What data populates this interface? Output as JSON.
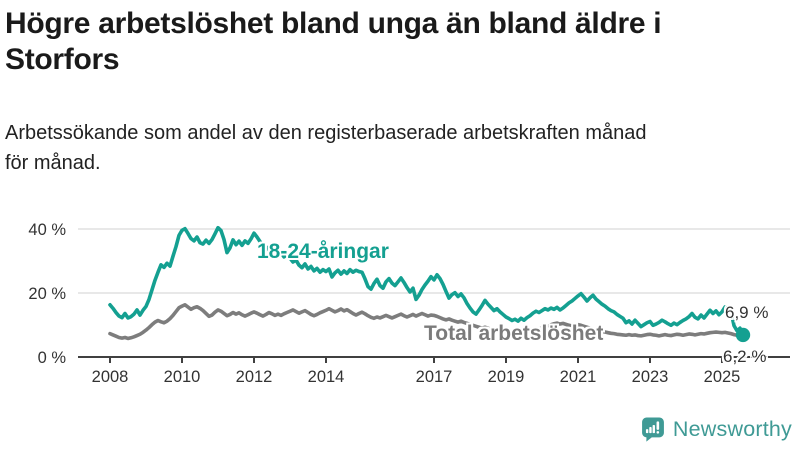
{
  "header": {
    "title": "Högre arbetslöshet bland unga än bland äldre i Storfors",
    "title_lines": [
      "Högre arbetslöshet bland unga än bland äldre i",
      "Storfors"
    ],
    "subtitle": "Arbetssökande som andel av den registerbaserade arbetskraften månad för månad.",
    "subtitle_lines": [
      "Arbetssökande som andel av den registerbaserade arbetskraften månad",
      "för månad."
    ]
  },
  "chart_data": {
    "type": "line",
    "title": "Högre arbetslöshet bland unga än bland äldre i Storfors",
    "subtitle": "Arbetssökande som andel av den registerbaserade arbetskraften månad för månad.",
    "frequency": "monthly",
    "unit": "%",
    "x_start_year": 2008,
    "x_end_approx": 2025.6,
    "x_tick_years": [
      2008,
      2010,
      2012,
      2014,
      2017,
      2019,
      2021,
      2023,
      2025
    ],
    "y_ticks": [
      {
        "value": 0,
        "label": "0 %"
      },
      {
        "value": 20,
        "label": "20 %"
      },
      {
        "value": 40,
        "label": "40 %"
      }
    ],
    "ylim": [
      0,
      44
    ],
    "grid": "horizontal-only",
    "legend": "inline-labels",
    "series": [
      {
        "name": "Total arbetslöshet",
        "color": "#7d7d7d",
        "end_value_label": "6,2 %",
        "end_dot": false,
        "values": [
          7.3,
          6.9,
          6.5,
          6.1,
          5.9,
          6.1,
          5.8,
          6.0,
          6.3,
          6.7,
          7.1,
          7.7,
          8.4,
          9.2,
          10.1,
          10.9,
          11.4,
          11.0,
          10.7,
          11.2,
          12.0,
          13.0,
          14.2,
          15.4,
          15.9,
          16.3,
          15.6,
          14.9,
          15.4,
          15.7,
          15.2,
          14.5,
          13.6,
          12.7,
          13.1,
          14.0,
          14.7,
          14.3,
          13.6,
          12.9,
          13.3,
          13.9,
          13.4,
          13.8,
          13.2,
          12.8,
          13.2,
          13.7,
          14.1,
          13.7,
          13.2,
          12.8,
          13.3,
          13.9,
          13.5,
          13.0,
          13.4,
          13.0,
          13.5,
          13.9,
          14.3,
          14.7,
          14.2,
          13.7,
          14.1,
          14.5,
          13.9,
          13.3,
          12.9,
          13.3,
          13.8,
          14.2,
          14.6,
          15.1,
          14.6,
          14.1,
          14.5,
          15.0,
          14.4,
          14.8,
          14.2,
          13.6,
          13.1,
          13.6,
          14.0,
          13.5,
          12.9,
          12.4,
          12.1,
          12.5,
          12.2,
          12.6,
          13.0,
          12.6,
          12.2,
          12.6,
          13.0,
          13.4,
          12.9,
          12.5,
          12.9,
          13.3,
          12.8,
          13.2,
          13.6,
          13.2,
          12.8,
          13.1,
          13.0,
          12.7,
          12.3,
          11.9,
          11.6,
          11.9,
          11.5,
          11.2,
          10.9,
          11.2,
          10.8,
          10.5,
          10.2,
          9.9,
          9.6,
          9.3,
          9.0,
          9.3,
          9.0,
          8.7,
          8.5,
          8.8,
          8.5,
          8.2,
          8.0,
          7.8,
          7.6,
          7.8,
          7.5,
          7.8,
          8.0,
          8.2,
          8.0,
          8.3,
          8.5,
          8.8,
          9.0,
          9.2,
          9.6,
          10.1,
          10.4,
          10.6,
          10.3,
          10.5,
          10.2,
          9.9,
          9.7,
          9.9,
          10.1,
          9.9,
          9.6,
          9.3,
          9.0,
          8.8,
          8.5,
          8.3,
          8.0,
          7.8,
          7.6,
          7.4,
          7.3,
          7.1,
          7.0,
          6.9,
          6.8,
          7.0,
          6.8,
          6.9,
          6.7,
          6.6,
          6.8,
          7.0,
          7.1,
          6.9,
          6.8,
          6.6,
          6.8,
          7.0,
          6.8,
          6.7,
          6.9,
          7.1,
          7.0,
          6.8,
          7.0,
          7.2,
          7.1,
          6.9,
          7.1,
          7.3,
          7.2,
          7.4,
          7.6,
          7.7,
          7.8,
          7.7,
          7.6,
          7.7,
          7.5,
          7.3,
          7.0,
          6.8,
          6.5,
          6.2
        ]
      },
      {
        "name": "18-24-åringar",
        "color": "#14a091",
        "end_value_label": "6,9 %",
        "end_dot": true,
        "values": [
          16.3,
          15.2,
          13.9,
          12.8,
          12.3,
          13.6,
          12.2,
          12.6,
          13.4,
          14.7,
          13.1,
          14.6,
          15.8,
          18.0,
          21.0,
          24.0,
          26.5,
          28.8,
          28.0,
          29.3,
          28.4,
          31.5,
          34.5,
          38.0,
          39.6,
          40.1,
          38.6,
          37.0,
          36.3,
          37.5,
          35.7,
          35.3,
          36.5,
          35.5,
          36.7,
          38.5,
          40.4,
          39.5,
          36.7,
          32.6,
          34.1,
          36.6,
          35.1,
          36.2,
          34.9,
          36.3,
          35.5,
          36.9,
          38.7,
          37.5,
          36.1,
          34.7,
          33.5,
          34.5,
          32.7,
          33.3,
          31.7,
          32.5,
          31.3,
          32.1,
          30.9,
          29.7,
          30.3,
          28.7,
          27.9,
          29.1,
          27.5,
          28.3,
          26.9,
          27.7,
          26.5,
          27.3,
          26.7,
          27.5,
          25.0,
          26.3,
          27.1,
          25.9,
          26.9,
          26.1,
          27.3,
          26.5,
          27.1,
          26.7,
          26.5,
          24.4,
          22.0,
          21.2,
          23.0,
          24.3,
          22.3,
          21.5,
          23.5,
          24.5,
          23.1,
          22.3,
          23.5,
          24.7,
          23.3,
          21.7,
          20.3,
          21.5,
          18.0,
          19.3,
          21.1,
          22.5,
          23.7,
          25.1,
          24.1,
          25.7,
          24.5,
          22.7,
          20.5,
          18.4,
          19.5,
          20.1,
          18.9,
          19.7,
          18.5,
          16.7,
          15.3,
          14.1,
          13.4,
          14.7,
          16.1,
          17.7,
          16.5,
          15.5,
          14.5,
          15.1,
          14.1,
          13.3,
          12.5,
          12.0,
          11.4,
          11.8,
          11.2,
          12.1,
          11.5,
          12.3,
          12.9,
          13.7,
          14.3,
          13.9,
          14.5,
          15.1,
          14.7,
          15.3,
          14.9,
          15.5,
          14.7,
          15.3,
          16.1,
          16.9,
          17.5,
          18.3,
          19.1,
          19.8,
          18.7,
          17.5,
          18.5,
          19.3,
          18.1,
          17.3,
          16.5,
          15.9,
          15.1,
          14.5,
          14.1,
          13.3,
          12.7,
          12.1,
          10.7,
          11.3,
          10.3,
          11.5,
          10.5,
          9.5,
          10.1,
          10.7,
          11.1,
          9.9,
          10.3,
          10.8,
          11.5,
          11.0,
          10.4,
          9.9,
          10.6,
          10.1,
          10.8,
          11.4,
          11.9,
          12.6,
          13.6,
          12.4,
          11.9,
          13.1,
          12.2,
          13.4,
          14.6,
          13.6,
          14.4,
          13.2,
          14.1,
          15.6,
          13.4,
          14.2,
          9.8,
          8.2,
          9.0,
          6.9
        ]
      }
    ]
  },
  "footer": {
    "brand": "Newsworthy",
    "brand_color": "#3f9a95",
    "logo_icon": "newsworthy-speech-bubble-bar-chart-icon"
  },
  "colors": {
    "background": "#ffffff",
    "axis": "#404040",
    "grid": "#dadada",
    "tick_text": "#333333",
    "title_text": "#1a1a1a",
    "accent_teal": "#14a091",
    "series_gray": "#7d7d7d"
  }
}
